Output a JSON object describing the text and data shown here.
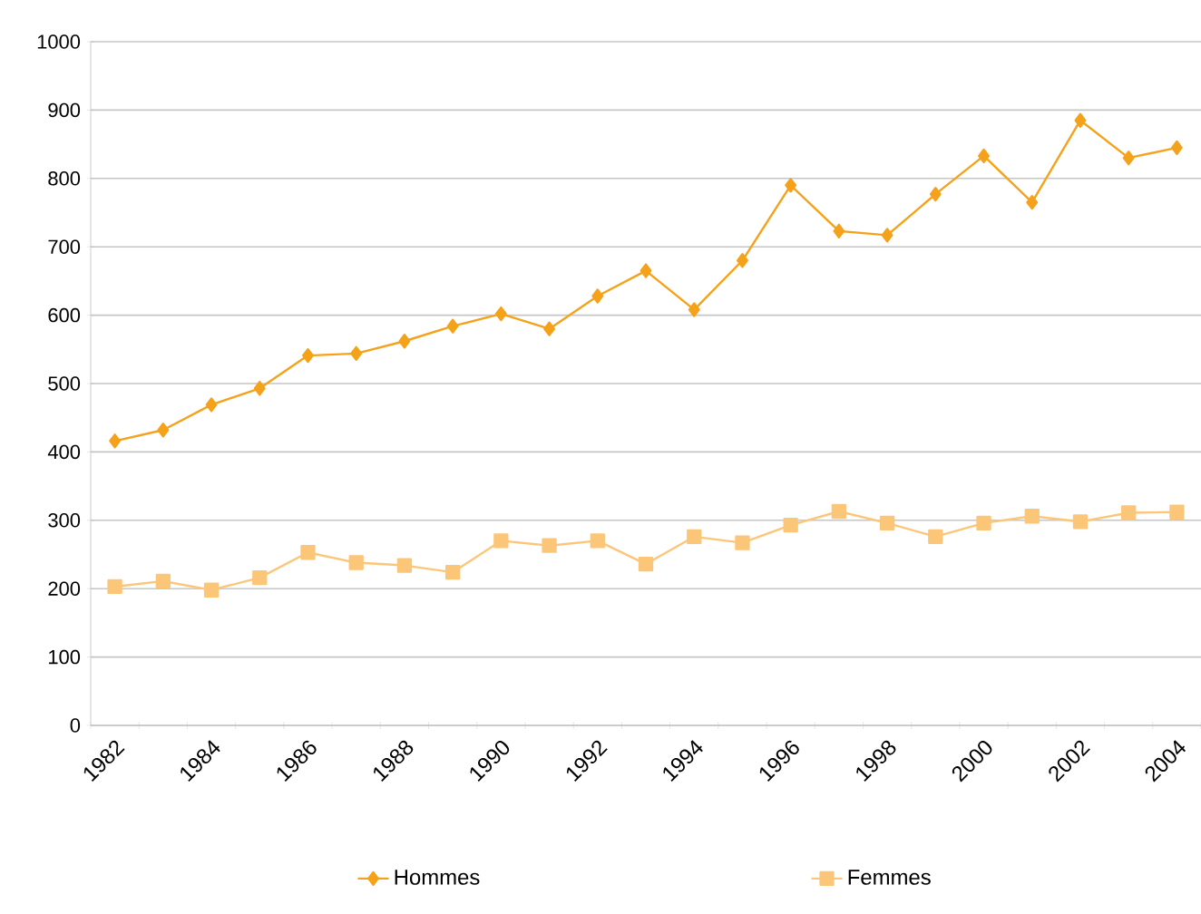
{
  "chart_data": {
    "type": "line",
    "categories": [
      "1982",
      null,
      "1984",
      null,
      "1986",
      null,
      "1988",
      null,
      "1990",
      null,
      "1992",
      null,
      "1994",
      null,
      "1996",
      null,
      "1998",
      null,
      "2000",
      null,
      "2002",
      null,
      "2004"
    ],
    "series": [
      {
        "name": "Hommes",
        "color": "#f5a21b",
        "marker": "diamond",
        "values": [
          416,
          432,
          469,
          493,
          541,
          544,
          562,
          584,
          602,
          580,
          628,
          665,
          608,
          680,
          790,
          723,
          717,
          777,
          833,
          765,
          885,
          830,
          845
        ]
      },
      {
        "name": "Femmes",
        "color": "#fcc679",
        "marker": "square",
        "values": [
          203,
          211,
          198,
          216,
          253,
          238,
          234,
          224,
          270,
          263,
          270,
          236,
          276,
          267,
          293,
          313,
          296,
          276,
          296,
          306,
          298,
          311,
          312
        ]
      }
    ],
    "ylim": [
      0,
      1000
    ],
    "yticks": [
      0,
      100,
      200,
      300,
      400,
      500,
      600,
      700,
      800,
      900,
      1000
    ],
    "grid": "y",
    "legend": "bottom",
    "line_style": "solid"
  }
}
